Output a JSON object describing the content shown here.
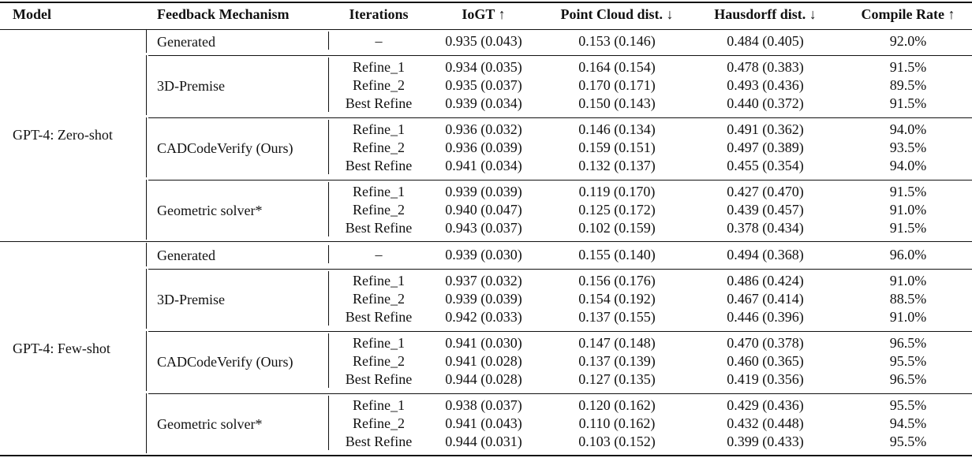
{
  "headers": [
    "Model",
    "Feedback Mechanism",
    "Iterations",
    "IoGT ↑",
    "Point Cloud dist. ↓",
    "Hausdorff dist. ↓",
    "Compile Rate ↑"
  ],
  "groups": [
    {
      "model": "GPT-4: Zero-shot",
      "mechanisms": [
        {
          "name": "Generated",
          "rows": [
            {
              "iter": "–",
              "iogt": "0.935 (0.043)",
              "pcd": "0.153 (0.146)",
              "hd": "0.484 (0.405)",
              "cr": "92.0%"
            }
          ]
        },
        {
          "name": "3D-Premise",
          "rows": [
            {
              "iter": "Refine_1",
              "iogt": "0.934 (0.035)",
              "pcd": "0.164 (0.154)",
              "hd": "0.478 (0.383)",
              "cr": "91.5%"
            },
            {
              "iter": "Refine_2",
              "iogt": "0.935 (0.037)",
              "pcd": "0.170 (0.171)",
              "hd": "0.493 (0.436)",
              "cr": "89.5%"
            },
            {
              "iter": "Best Refine",
              "iogt": "0.939 (0.034)",
              "pcd": "0.150 (0.143)",
              "hd": "0.440 (0.372)",
              "cr": "91.5%"
            }
          ]
        },
        {
          "name": "CADCodeVerify (Ours)",
          "rows": [
            {
              "iter": "Refine_1",
              "iogt": "0.936 (0.032)",
              "pcd": "0.146 (0.134)",
              "hd": "0.491 (0.362)",
              "cr": "94.0%"
            },
            {
              "iter": "Refine_2",
              "iogt": "0.936 (0.039)",
              "pcd": "0.159 (0.151)",
              "hd": "0.497 (0.389)",
              "cr": "93.5%"
            },
            {
              "iter": "Best Refine",
              "iogt": "0.941 (0.034)",
              "pcd": "0.132 (0.137)",
              "hd": "0.455 (0.354)",
              "cr": "94.0%"
            }
          ]
        },
        {
          "name": "Geometric solver*",
          "rows": [
            {
              "iter": "Refine_1",
              "iogt": "0.939 (0.039)",
              "pcd": "0.119 (0.170)",
              "hd": "0.427 (0.470)",
              "cr": "91.5%"
            },
            {
              "iter": "Refine_2",
              "iogt": "0.940 (0.047)",
              "pcd": "0.125 (0.172)",
              "hd": "0.439 (0.457)",
              "cr": "91.0%"
            },
            {
              "iter": "Best Refine",
              "iogt": "0.943 (0.037)",
              "pcd": "0.102 (0.159)",
              "hd": "0.378 (0.434)",
              "cr": "91.5%"
            }
          ]
        }
      ]
    },
    {
      "model": "GPT-4: Few-shot",
      "mechanisms": [
        {
          "name": "Generated",
          "rows": [
            {
              "iter": "–",
              "iogt": "0.939 (0.030)",
              "pcd": "0.155 (0.140)",
              "hd": "0.494 (0.368)",
              "cr": "96.0%"
            }
          ]
        },
        {
          "name": "3D-Premise",
          "rows": [
            {
              "iter": "Refine_1",
              "iogt": "0.937 (0.032)",
              "pcd": "0.156 (0.176)",
              "hd": "0.486 (0.424)",
              "cr": "91.0%"
            },
            {
              "iter": "Refine_2",
              "iogt": "0.939 (0.039)",
              "pcd": "0.154 (0.192)",
              "hd": "0.467 (0.414)",
              "cr": "88.5%"
            },
            {
              "iter": "Best Refine",
              "iogt": "0.942 (0.033)",
              "pcd": "0.137 (0.155)",
              "hd": "0.446 (0.396)",
              "cr": "91.0%"
            }
          ]
        },
        {
          "name": "CADCodeVerify (Ours)",
          "rows": [
            {
              "iter": "Refine_1",
              "iogt": "0.941 (0.030)",
              "pcd": "0.147 (0.148)",
              "hd": "0.470 (0.378)",
              "cr": "96.5%"
            },
            {
              "iter": "Refine_2",
              "iogt": "0.941 (0.028)",
              "pcd": "0.137 (0.139)",
              "hd": "0.460 (0.365)",
              "cr": "95.5%"
            },
            {
              "iter": "Best Refine",
              "iogt": "0.944 (0.028)",
              "pcd": "0.127 (0.135)",
              "hd": "0.419 (0.356)",
              "cr": "96.5%"
            }
          ]
        },
        {
          "name": "Geometric solver*",
          "rows": [
            {
              "iter": "Refine_1",
              "iogt": "0.938 (0.037)",
              "pcd": "0.120 (0.162)",
              "hd": "0.429 (0.436)",
              "cr": "95.5%"
            },
            {
              "iter": "Refine_2",
              "iogt": "0.941 (0.043)",
              "pcd": "0.110 (0.162)",
              "hd": "0.432 (0.448)",
              "cr": "94.5%"
            },
            {
              "iter": "Best Refine",
              "iogt": "0.944 (0.031)",
              "pcd": "0.103 (0.152)",
              "hd": "0.399 (0.433)",
              "cr": "95.5%"
            }
          ]
        }
      ]
    }
  ]
}
